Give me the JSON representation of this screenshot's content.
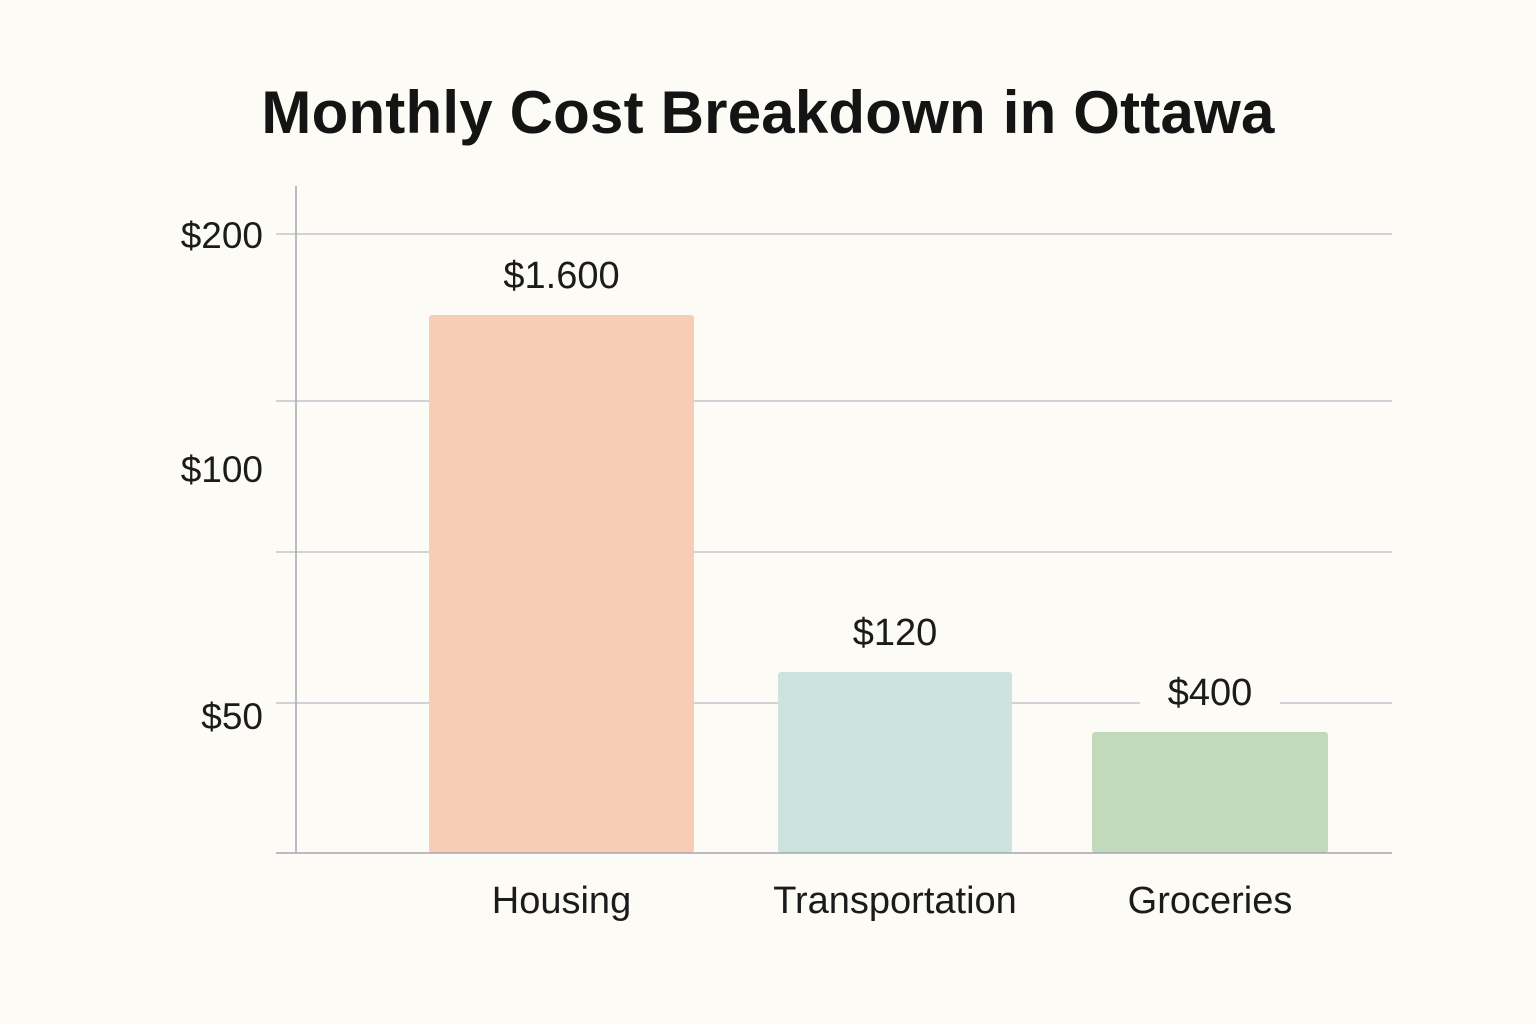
{
  "chart_data": {
    "type": "bar",
    "title": "Monthly Cost Breakdown in Ottawa",
    "xlabel": "",
    "ylabel": "",
    "grid": true,
    "legend": "none",
    "categories": [
      "Housing",
      "Transportation",
      "Groceries"
    ],
    "values": [
      1600,
      120,
      400
    ],
    "value_labels": [
      "$1.600",
      "$120",
      "$400"
    ],
    "colors": [
      "#f7cdb5",
      "#cde3de",
      "#c0dabb"
    ],
    "y_ticks": [
      {
        "value": 200,
        "label": "$200"
      },
      {
        "value": 100,
        "label": "$100"
      },
      {
        "value": 50,
        "label": "$50"
      }
    ]
  }
}
